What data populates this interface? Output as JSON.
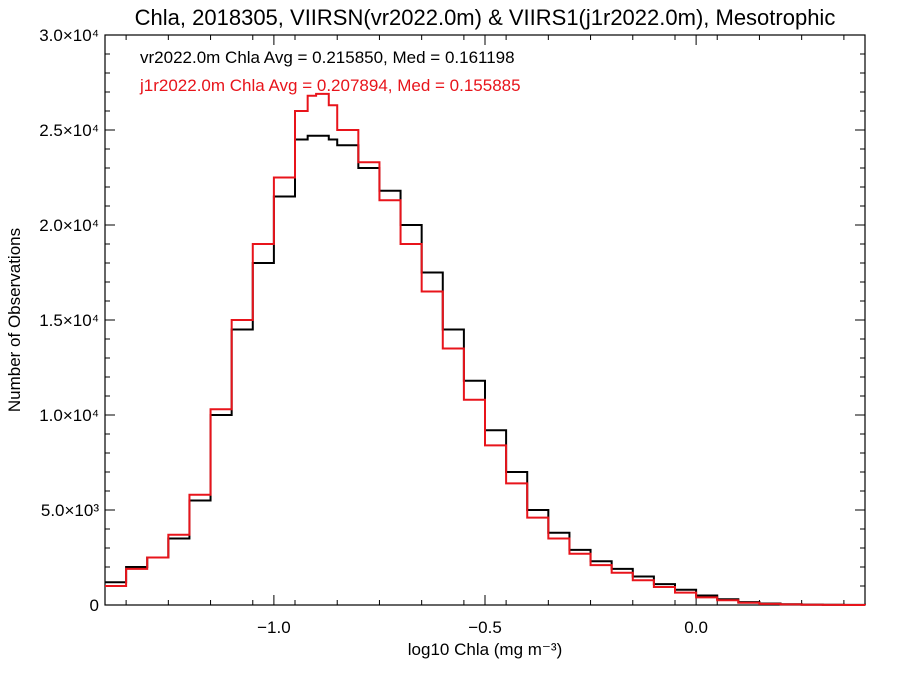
{
  "chart_data": {
    "type": "line",
    "title": "Chla, 2018305, VIIRSN(vr2022.0m) & VIIRS1(j1r2022.0m), Mesotrophic",
    "xlabel": "log10 Chla (mg m⁻³)",
    "ylabel": "Number of Observations",
    "xlim": [
      -1.4,
      0.4
    ],
    "ylim": [
      0,
      30000
    ],
    "x_ticks": [
      -1.0,
      -0.5,
      0.0
    ],
    "x_tick_labels": [
      "−1.0",
      "−0.5",
      "0.0"
    ],
    "y_ticks": [
      0,
      5000,
      10000,
      15000,
      20000,
      25000,
      30000
    ],
    "y_tick_labels": [
      "0",
      "5.0×10³",
      "1.0×10⁴",
      "1.5×10⁴",
      "2.0×10⁴",
      "2.5×10⁴",
      "3.0×10⁴"
    ],
    "grid": false,
    "annotations": [
      {
        "text": "vr2022.0m Chla Avg = 0.215850, Med = 0.161198",
        "color": "#000000"
      },
      {
        "text": "j1r2022.0m Chla Avg = 0.207894, Med = 0.155885",
        "color": "#e8141b"
      }
    ],
    "series": [
      {
        "color": "#000000",
        "step": true,
        "x": [
          -1.4,
          -1.35,
          -1.3,
          -1.25,
          -1.2,
          -1.15,
          -1.1,
          -1.05,
          -1.0,
          -0.95,
          -0.92,
          -0.9,
          -0.87,
          -0.85,
          -0.8,
          -0.75,
          -0.7,
          -0.65,
          -0.6,
          -0.55,
          -0.5,
          -0.45,
          -0.4,
          -0.35,
          -0.3,
          -0.25,
          -0.2,
          -0.15,
          -0.1,
          -0.05,
          0.0,
          0.05,
          0.1,
          0.15,
          0.2,
          0.25,
          0.3,
          0.35,
          0.4
        ],
        "values": [
          1200,
          2000,
          2500,
          3500,
          5500,
          10000,
          14500,
          18000,
          21500,
          24500,
          24700,
          24700,
          24500,
          24200,
          23000,
          21800,
          20000,
          17500,
          14500,
          11800,
          9200,
          7000,
          5000,
          3800,
          2900,
          2300,
          1900,
          1500,
          1100,
          800,
          500,
          300,
          150,
          80,
          40,
          20,
          10,
          5,
          0
        ]
      },
      {
        "color": "#e8141b",
        "step": true,
        "x": [
          -1.4,
          -1.35,
          -1.3,
          -1.25,
          -1.2,
          -1.15,
          -1.1,
          -1.05,
          -1.0,
          -0.95,
          -0.92,
          -0.9,
          -0.87,
          -0.85,
          -0.8,
          -0.75,
          -0.7,
          -0.65,
          -0.6,
          -0.55,
          -0.5,
          -0.45,
          -0.4,
          -0.35,
          -0.3,
          -0.25,
          -0.2,
          -0.15,
          -0.1,
          -0.05,
          0.0,
          0.05,
          0.1,
          0.15,
          0.2,
          0.25,
          0.3,
          0.35,
          0.4
        ],
        "values": [
          1000,
          1900,
          2500,
          3700,
          5800,
          10300,
          15000,
          19000,
          22500,
          26000,
          26800,
          26900,
          26300,
          25000,
          23300,
          21300,
          19000,
          16500,
          13500,
          10800,
          8400,
          6400,
          4600,
          3500,
          2700,
          2100,
          1700,
          1300,
          950,
          650,
          400,
          250,
          120,
          60,
          30,
          15,
          8,
          3,
          0
        ]
      }
    ]
  }
}
